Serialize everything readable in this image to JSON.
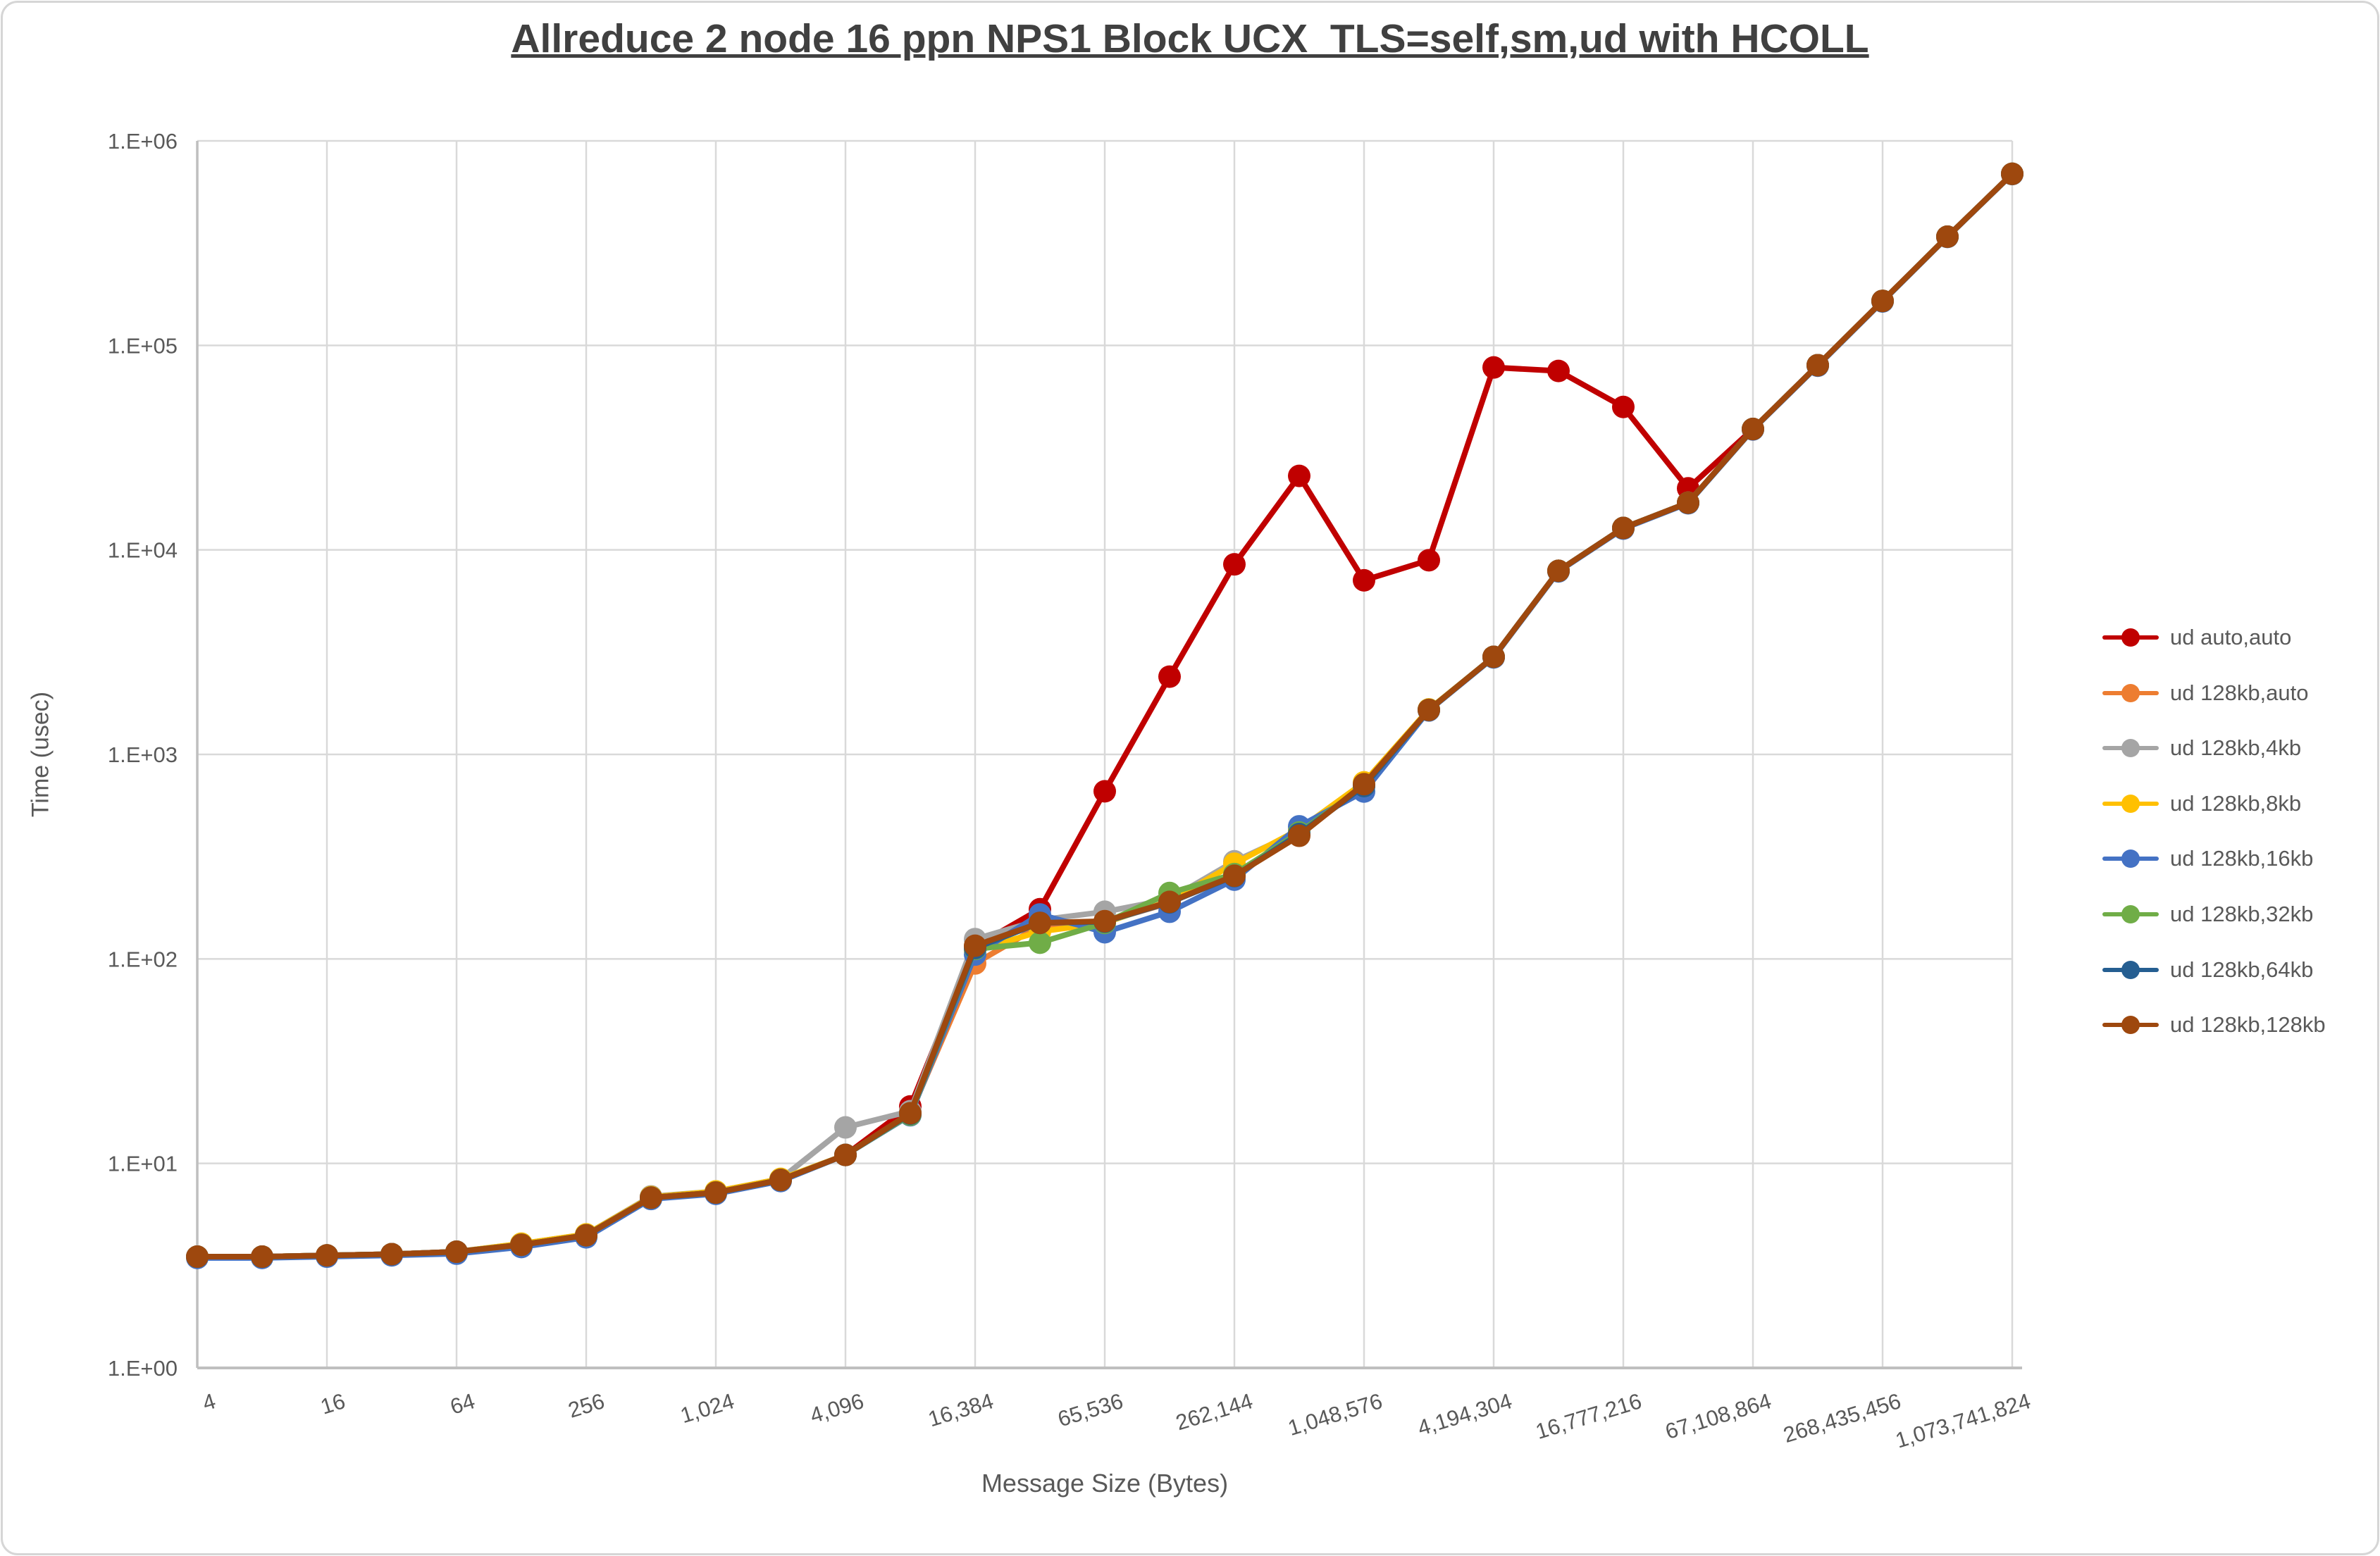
{
  "title": "Allreduce 2 node 16 ppn NPS1 Block UCX_TLS=self,sm,ud with HCOLL",
  "chart_data": {
    "type": "line",
    "title": "Allreduce 2 node 16 ppn NPS1 Block UCX_TLS=self,sm,ud with HCOLL",
    "xlabel": "Message Size (Bytes)",
    "ylabel": "Time (usec)",
    "x_scale": "log2",
    "y_scale": "log10",
    "ylim": [
      1,
      1000000
    ],
    "grid": true,
    "legend_position": "right",
    "x_tick_labels": [
      "4",
      "16",
      "64",
      "256",
      "1,024",
      "4,096",
      "16,384",
      "65,536",
      "262,144",
      "1,048,576",
      "4,194,304",
      "16,777,216",
      "67,108,864",
      "268,435,456",
      "1,073,741,824"
    ],
    "y_tick_labels": [
      "1.E+00",
      "1.E+01",
      "1.E+02",
      "1.E+03",
      "1.E+04",
      "1.E+05",
      "1.E+06"
    ],
    "categories": [
      4,
      8,
      16,
      32,
      64,
      128,
      256,
      512,
      1024,
      2048,
      4096,
      8192,
      16384,
      32768,
      65536,
      131072,
      262144,
      524288,
      1048576,
      2097152,
      4194304,
      8388608,
      16777216,
      33554432,
      67108864,
      134217728,
      268435456,
      536870912,
      1073741824
    ],
    "series": [
      {
        "name": "ud auto,auto",
        "color": "#C00000",
        "values": [
          3.5,
          3.5,
          3.55,
          3.6,
          3.7,
          4.0,
          4.45,
          6.8,
          7.2,
          8.3,
          11,
          19,
          115,
          175,
          660,
          2400,
          8500,
          23000,
          7100,
          8900,
          78000,
          75000,
          50000,
          20000,
          39000,
          80000,
          165000,
          340000,
          690000
        ]
      },
      {
        "name": "ud 128kb,auto",
        "color": "#ED7D31",
        "values": [
          3.5,
          3.5,
          3.55,
          3.6,
          3.7,
          4.0,
          4.45,
          6.8,
          7.2,
          8.3,
          11,
          17.5,
          95,
          145,
          152,
          188,
          258,
          412,
          700,
          1650,
          3000,
          7900,
          12800,
          17000,
          39000,
          80000,
          165000,
          340000,
          690000
        ]
      },
      {
        "name": "ud 128kb,4kb",
        "color": "#A5A5A5",
        "values": [
          3.5,
          3.5,
          3.55,
          3.6,
          3.7,
          4.05,
          4.5,
          6.9,
          7.3,
          8.4,
          15,
          18,
          125,
          155,
          170,
          196,
          300,
          420,
          715,
          1660,
          3000,
          7900,
          12800,
          17000,
          39000,
          80000,
          165000,
          340000,
          690000
        ]
      },
      {
        "name": "ud 128kb,8kb",
        "color": "#FFC000",
        "values": [
          3.5,
          3.5,
          3.55,
          3.6,
          3.7,
          4.05,
          4.5,
          6.85,
          7.3,
          8.4,
          11,
          17.5,
          110,
          136,
          150,
          192,
          292,
          430,
          730,
          1660,
          3000,
          7900,
          12800,
          17000,
          39000,
          80000,
          165000,
          340000,
          690000
        ]
      },
      {
        "name": "ud 128kb,16kb",
        "color": "#4472C4",
        "values": [
          3.45,
          3.45,
          3.5,
          3.55,
          3.62,
          3.9,
          4.35,
          6.7,
          7.1,
          8.2,
          11,
          17.2,
          105,
          165,
          135,
          170,
          244,
          445,
          658,
          1640,
          2980,
          7850,
          12700,
          16900,
          38800,
          79500,
          164000,
          339000,
          688000
        ]
      },
      {
        "name": "ud 128kb,32kb",
        "color": "#70AD47",
        "values": [
          3.5,
          3.5,
          3.55,
          3.6,
          3.7,
          4.0,
          4.45,
          6.8,
          7.2,
          8.3,
          11,
          17.3,
          112,
          120,
          150,
          210,
          260,
          415,
          700,
          1650,
          3000,
          7900,
          12800,
          17000,
          39000,
          80000,
          165000,
          340000,
          690000
        ]
      },
      {
        "name": "ud 128kb,64kb",
        "color": "#255E91",
        "values": [
          3.5,
          3.5,
          3.55,
          3.6,
          3.7,
          4.0,
          4.45,
          6.8,
          7.2,
          8.3,
          11,
          17.5,
          113,
          150,
          152,
          189,
          254,
          408,
          700,
          1650,
          3000,
          7900,
          12800,
          17000,
          39000,
          80000,
          165000,
          340000,
          690000
        ]
      },
      {
        "name": "ud 128kb,128kb",
        "color": "#9E480E",
        "values": [
          3.5,
          3.5,
          3.55,
          3.6,
          3.7,
          4.0,
          4.45,
          6.8,
          7.2,
          8.3,
          11,
          17.6,
          116,
          150,
          153,
          190,
          255,
          400,
          715,
          1650,
          3000,
          7900,
          12800,
          17000,
          39000,
          80000,
          165000,
          340000,
          690000
        ]
      }
    ]
  },
  "colors": {
    "gridline": "#D9D9D9",
    "axis_line": "#BFBFBF",
    "tick_text": "#595959",
    "title_text": "#404040"
  }
}
